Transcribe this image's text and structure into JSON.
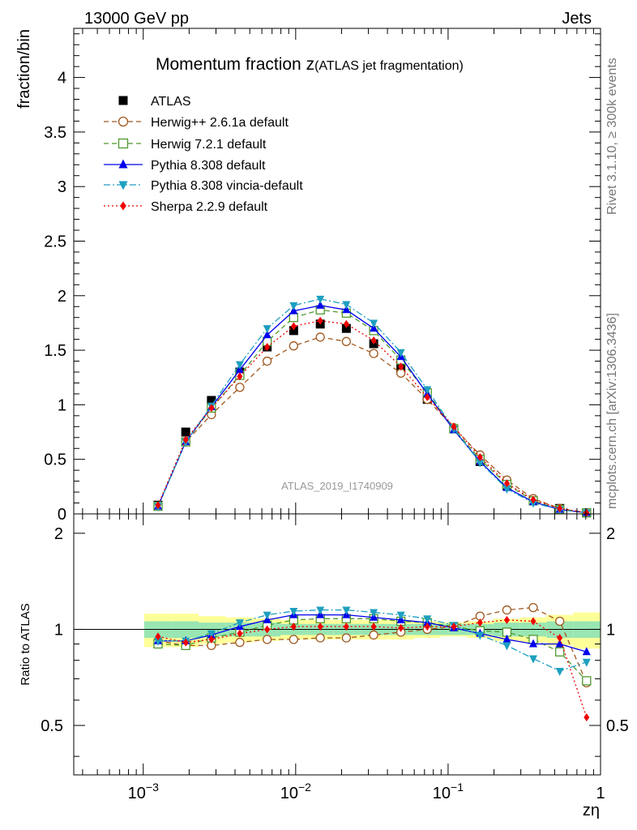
{
  "header": {
    "left": "13000 GeV pp",
    "right": "Jets"
  },
  "side_text": {
    "rivet": "Rivet 3.1.10, ≥ 300k events",
    "mcplots": "mcplots.cern.ch [arXiv:1306.3436]"
  },
  "chart_data": {
    "type": "line",
    "title_main": "Momentum fraction z",
    "title_sub": "(ATLAS jet fragmentation)",
    "watermark": "ATLAS_2019_I1740909",
    "xlabel": "zη",
    "ylabel": "fraction/bin",
    "ratio_ylabel": "Ratio to ATLAS",
    "x_scale": "log",
    "xlim": [
      0.00035,
      1.0
    ],
    "ylim": [
      0,
      4.45
    ],
    "ratio_ylim": [
      0.35,
      2.3
    ],
    "x_tick_labels": [
      {
        "value": 0.001,
        "base": "10",
        "exp": "−3"
      },
      {
        "value": 0.01,
        "base": "10",
        "exp": "−2"
      },
      {
        "value": 0.1,
        "base": "10",
        "exp": "−1"
      },
      {
        "value": 1,
        "base": "1",
        "exp": ""
      }
    ],
    "y_ticks": [
      "0",
      "0.5",
      "1",
      "1.5",
      "2",
      "2.5",
      "3",
      "3.5",
      "4"
    ],
    "ratio_ticks_left": [
      "0.5",
      "1",
      "2"
    ],
    "ratio_ticks_right": [
      "0.5",
      "1",
      "2"
    ],
    "x": [
      0.00125,
      0.0019,
      0.0028,
      0.0043,
      0.0065,
      0.0097,
      0.0145,
      0.0215,
      0.0325,
      0.049,
      0.073,
      0.109,
      0.162,
      0.243,
      0.362,
      0.54,
      0.81
    ],
    "data": {
      "name": "ATLAS",
      "values": [
        0.08,
        0.75,
        1.04,
        1.3,
        1.53,
        1.68,
        1.74,
        1.7,
        1.56,
        1.34,
        1.05,
        0.78,
        0.48,
        0.26,
        0.12,
        0.05,
        0.01
      ],
      "ratio_band_stat": [
        0.06,
        0.06,
        0.05,
        0.05,
        0.05,
        0.04,
        0.04,
        0.04,
        0.04,
        0.04,
        0.04,
        0.04,
        0.04,
        0.05,
        0.05,
        0.06,
        0.06
      ],
      "ratio_band_syst": [
        0.12,
        0.12,
        0.1,
        0.09,
        0.08,
        0.07,
        0.07,
        0.07,
        0.07,
        0.07,
        0.06,
        0.05,
        0.06,
        0.08,
        0.09,
        0.11,
        0.13
      ]
    },
    "series": [
      {
        "name": "Herwig++ 2.6.1a default",
        "color": "#a0581e",
        "dash": "6,4",
        "marker": "circle-open",
        "values": [
          0.07,
          0.66,
          0.91,
          1.16,
          1.4,
          1.54,
          1.62,
          1.58,
          1.47,
          1.29,
          1.05,
          0.79,
          0.54,
          0.31,
          0.14,
          0.05,
          0.01
        ],
        "ratio": [
          0.92,
          0.89,
          0.89,
          0.91,
          0.93,
          0.93,
          0.94,
          0.94,
          0.96,
          0.98,
          1.0,
          1.02,
          1.1,
          1.15,
          1.17,
          1.06,
          0.68
        ]
      },
      {
        "name": "Herwig 7.2.1 default",
        "color": "#4f9a2f",
        "dash": "6,4",
        "marker": "square-open",
        "values": [
          0.07,
          0.66,
          0.97,
          1.27,
          1.58,
          1.8,
          1.87,
          1.84,
          1.68,
          1.41,
          1.11,
          0.78,
          0.5,
          0.27,
          0.12,
          0.04,
          0.01
        ],
        "ratio": [
          0.9,
          0.89,
          0.94,
          0.98,
          1.03,
          1.07,
          1.08,
          1.08,
          1.08,
          1.06,
          1.05,
          1.02,
          0.99,
          0.98,
          0.93,
          0.85,
          0.69
        ]
      },
      {
        "name": "Pythia 8.308 default",
        "color": "#0000ee",
        "dash": "",
        "marker": "triangle-up",
        "values": [
          0.07,
          0.66,
          0.98,
          1.32,
          1.64,
          1.86,
          1.91,
          1.87,
          1.7,
          1.44,
          1.1,
          0.77,
          0.48,
          0.24,
          0.11,
          0.04,
          0.01
        ],
        "ratio": [
          0.92,
          0.92,
          0.96,
          1.02,
          1.07,
          1.11,
          1.11,
          1.11,
          1.09,
          1.07,
          1.05,
          1.01,
          0.97,
          0.93,
          0.9,
          0.9,
          0.85
        ]
      },
      {
        "name": "Pythia 8.308 vincia-default",
        "color": "#1e9fc0",
        "dash": "8,3,2,3",
        "marker": "triangle-down",
        "values": [
          0.07,
          0.66,
          0.99,
          1.37,
          1.7,
          1.91,
          1.97,
          1.92,
          1.75,
          1.48,
          1.14,
          0.78,
          0.47,
          0.23,
          0.1,
          0.04,
          0.01
        ],
        "ratio": [
          0.92,
          0.92,
          0.97,
          1.05,
          1.11,
          1.14,
          1.15,
          1.15,
          1.13,
          1.11,
          1.08,
          1.03,
          0.96,
          0.89,
          0.81,
          0.74,
          0.79
        ]
      },
      {
        "name": "Sherpa 2.2.9 default",
        "color": "#ee0000",
        "dash": "2,3",
        "marker": "diamond",
        "values": [
          0.08,
          0.68,
          0.97,
          1.26,
          1.53,
          1.72,
          1.77,
          1.74,
          1.59,
          1.35,
          1.07,
          0.8,
          0.52,
          0.28,
          0.13,
          0.05,
          0.01
        ],
        "ratio": [
          0.95,
          0.91,
          0.93,
          0.97,
          1.0,
          1.02,
          1.02,
          1.02,
          1.02,
          1.01,
          1.02,
          1.02,
          1.05,
          1.07,
          1.06,
          0.94,
          0.53
        ]
      }
    ]
  }
}
